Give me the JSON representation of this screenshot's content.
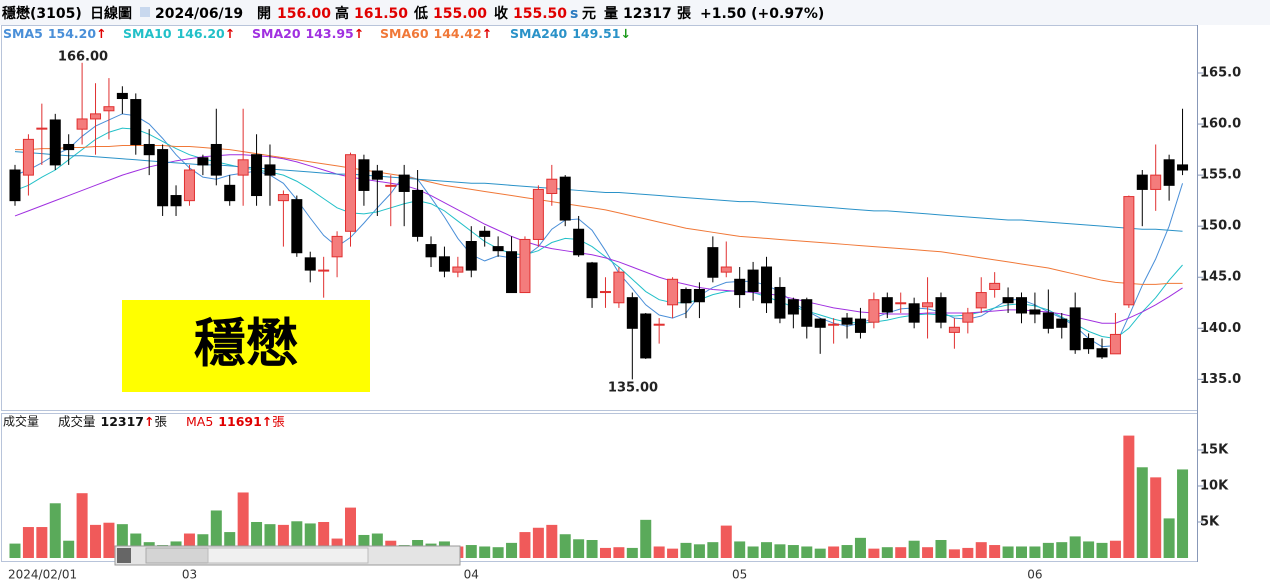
{
  "header": {
    "name": "穩懋(3105)",
    "period": "日線圖",
    "date": "2024/06/19",
    "open_label": "開",
    "open": "156.00",
    "high_label": "高",
    "high": "161.50",
    "low_label": "低",
    "low": "155.00",
    "close_label": "收",
    "close": "155.50",
    "currency_icon": "s",
    "currency": "元",
    "volume_label": "量",
    "volume": "12317",
    "volume_unit": "張",
    "change": "+1.50 (+0.97%)"
  },
  "label_box": "穩懋",
  "chart_data": [
    {
      "type": "candlestick",
      "categories": [
        "2024/02/01",
        null,
        null,
        null,
        null,
        null,
        null,
        null,
        null,
        null,
        null,
        null,
        null,
        "03",
        null,
        null,
        null,
        null,
        null,
        null,
        null,
        null,
        null,
        null,
        null,
        null,
        null,
        null,
        null,
        null,
        null,
        null,
        null,
        null,
        "04",
        null,
        null,
        null,
        null,
        null,
        null,
        null,
        null,
        null,
        null,
        null,
        null,
        null,
        null,
        null,
        null,
        null,
        null,
        null,
        "05",
        null,
        null,
        null,
        null,
        null,
        null,
        null,
        null,
        null,
        null,
        null,
        null,
        null,
        null,
        null,
        null,
        null,
        null,
        null,
        null,
        null,
        "06",
        null,
        null,
        null,
        null,
        null,
        null,
        null,
        null,
        null,
        null,
        null
      ],
      "open": [
        155.5,
        155,
        159.5,
        160.4,
        158,
        159.5,
        160.5,
        161.3,
        163,
        162.4,
        158,
        157.5,
        153,
        152.5,
        156.7,
        158,
        154,
        155,
        157,
        156,
        152.5,
        152.6,
        146.9,
        145.7,
        147,
        149.5,
        156.5,
        155.4,
        154,
        155,
        153.5,
        148.2,
        147,
        145.5,
        148.5,
        149.5,
        148,
        147.5,
        143.5,
        148.7,
        153.2,
        154.8,
        149.7,
        146.4,
        143.6,
        142.5,
        143,
        141.4,
        140.4,
        142.3,
        143.8,
        143.8,
        147.9,
        145.5,
        144.8,
        145.7,
        146,
        144,
        142.8,
        142.8,
        140.9,
        140.4,
        141,
        140.9,
        140.6,
        143,
        142.5,
        142.4,
        142.1,
        143,
        139.6,
        140.6,
        142,
        143.8,
        143,
        143,
        141.8,
        141.5,
        140.9,
        142,
        139,
        138,
        137.5,
        142.3,
        155,
        153.6,
        156.5,
        156
      ],
      "high": [
        156,
        159,
        162,
        161,
        159,
        166,
        164,
        164.5,
        163.7,
        163,
        159.5,
        158,
        154,
        156,
        157,
        161.5,
        155,
        161.5,
        159,
        158,
        153.5,
        153,
        147.5,
        147,
        149.5,
        157.2,
        157,
        156,
        155,
        156,
        155.5,
        149,
        148,
        147,
        150,
        150,
        149,
        149,
        149,
        154,
        156,
        155,
        151,
        146.5,
        145,
        146,
        143.5,
        141.5,
        141,
        145,
        144,
        144.5,
        149,
        148.5,
        146,
        146.5,
        147,
        145,
        143,
        143,
        141,
        141,
        141.5,
        142,
        143.5,
        143.5,
        143.5,
        143,
        145,
        143.5,
        141,
        142,
        145,
        145.5,
        144,
        143.5,
        143.5,
        143.8,
        141.5,
        143.5,
        139.5,
        139,
        141.5,
        153,
        155.5,
        158,
        157,
        161.5
      ],
      "low": [
        152,
        153,
        156,
        155.5,
        156,
        158,
        157,
        158.5,
        161,
        157,
        155,
        151,
        151,
        152,
        155,
        154,
        152,
        152,
        152,
        152,
        148,
        147,
        144.5,
        143,
        145,
        148,
        152,
        151,
        150,
        150,
        148.5,
        146,
        145,
        145,
        145,
        148,
        147,
        143.5,
        143.5,
        148,
        152,
        150,
        147,
        142,
        142,
        142,
        135,
        137,
        138.5,
        141,
        141,
        141,
        144.5,
        145,
        142,
        142.7,
        141.5,
        140.5,
        140,
        139,
        137.5,
        138.5,
        139,
        139,
        140,
        141,
        141.5,
        140,
        139,
        140,
        138,
        139.5,
        141.5,
        143,
        141.5,
        140.5,
        140.5,
        139.5,
        139,
        137.5,
        137.5,
        137,
        137.5,
        142,
        150,
        151.5,
        152.5,
        155
      ],
      "close": [
        152.5,
        158.5,
        159.6,
        156,
        157.5,
        160.5,
        161,
        161.7,
        162.5,
        158,
        157,
        152,
        152,
        155.5,
        156,
        155,
        152.5,
        156.5,
        153,
        155,
        153.1,
        147.4,
        145.7,
        145.7,
        149,
        157,
        153.5,
        154.6,
        154,
        153.4,
        149,
        147,
        145.6,
        146,
        145.7,
        149,
        147.6,
        143.5,
        148.7,
        153.6,
        154.6,
        150.6,
        147.2,
        143,
        143.6,
        145.5,
        140,
        137.1,
        140.4,
        144.8,
        142.5,
        142.6,
        145,
        146,
        143.3,
        143.6,
        142.5,
        141,
        141.4,
        140.2,
        140.1,
        140.4,
        140.4,
        139.6,
        142.8,
        141.6,
        142.5,
        140.6,
        142.5,
        140.6,
        140.1,
        141.5,
        143.5,
        144.4,
        142.5,
        141.5,
        141.4,
        140,
        140.1,
        137.9,
        138,
        137.2,
        139.4,
        152.9,
        153.6,
        155,
        154,
        155.5
      ],
      "up_color": "#f47c7c",
      "up_edge": "#e03030",
      "down_color": "#000000",
      "series": [
        {
          "name": "SMA5",
          "legend_value": "154.20",
          "arrow": "↑",
          "arrow_color": "#e00000",
          "color": "#4a8fd8",
          "values": [
            155.0,
            155.5,
            156.2,
            157.0,
            157.6,
            158.8,
            159.8,
            160.4,
            161.0,
            160.8,
            160.0,
            158.6,
            157.0,
            155.7,
            154.8,
            154.6,
            155.0,
            155.2,
            155.4,
            155.0,
            154.2,
            152.6,
            150.8,
            149.1,
            148.0,
            148.9,
            150.3,
            151.8,
            153.2,
            155.0,
            154.6,
            152.8,
            150.9,
            148.8,
            147.2,
            146.6,
            147.1,
            146.9,
            147.0,
            148.0,
            149.7,
            150.6,
            150.7,
            149.6,
            147.6,
            145.4,
            143.9,
            142.3,
            141.3,
            141.0,
            141.5,
            143.2,
            144.0,
            144.5,
            144.6,
            144.6,
            144.2,
            143.6,
            142.5,
            141.7,
            141.0,
            140.5,
            140.2,
            140.5,
            141.0,
            141.5,
            141.9,
            142.0,
            141.9,
            141.6,
            141.0,
            140.9,
            141.2,
            142.0,
            142.8,
            142.8,
            142.3,
            141.6,
            141.0,
            140.2,
            139.0,
            138.2,
            138.3,
            141.2,
            144.2,
            146.8,
            150.0,
            154.2
          ]
        },
        {
          "name": "SMA10",
          "legend_value": "146.20",
          "arrow": "↑",
          "arrow_color": "#e00000",
          "color": "#22c0c8",
          "values": [
            153.5,
            154.0,
            154.8,
            155.5,
            156.5,
            157.5,
            158.5,
            159.2,
            159.6,
            159.5,
            159.0,
            158.3,
            157.6,
            157.0,
            156.6,
            156.3,
            156.0,
            155.7,
            155.5,
            155.3,
            155.0,
            154.4,
            153.6,
            152.7,
            151.8,
            151.3,
            151.2,
            151.4,
            151.8,
            152.2,
            152.5,
            152.2,
            151.5,
            150.5,
            149.5,
            148.5,
            147.8,
            147.3,
            147.2,
            147.6,
            148.4,
            148.8,
            148.7,
            148.0,
            147.0,
            146.0,
            144.8,
            143.6,
            142.8,
            142.5,
            142.5,
            142.8,
            143.3,
            143.6,
            143.7,
            143.5,
            143.1,
            142.6,
            142.1,
            141.7,
            141.3,
            140.9,
            140.6,
            140.5,
            140.6,
            140.8,
            141.1,
            141.3,
            141.4,
            141.3,
            141.2,
            141.3,
            141.6,
            142.0,
            142.3,
            142.4,
            142.2,
            141.8,
            141.1,
            140.4,
            139.7,
            139.2,
            139.0,
            140.0,
            141.6,
            143.0,
            144.7,
            146.2
          ]
        },
        {
          "name": "SMA20",
          "legend_value": "143.95",
          "arrow": "↑",
          "arrow_color": "#e00000",
          "color": "#a030e0",
          "values": [
            151.0,
            151.5,
            152.0,
            152.5,
            153.0,
            153.5,
            154.0,
            154.5,
            155.0,
            155.4,
            155.8,
            156.1,
            156.4,
            156.6,
            156.8,
            156.9,
            157.0,
            157.0,
            156.9,
            156.8,
            156.6,
            156.3,
            155.9,
            155.5,
            155.1,
            154.8,
            154.6,
            154.4,
            154.2,
            154.0,
            153.6,
            153.0,
            152.3,
            151.6,
            150.9,
            150.2,
            149.6,
            149.0,
            148.5,
            148.1,
            147.8,
            147.6,
            147.4,
            147.2,
            146.9,
            146.5,
            146.0,
            145.5,
            145.0,
            144.6,
            144.3,
            144.0,
            143.8,
            143.7,
            143.6,
            143.5,
            143.4,
            143.2,
            142.9,
            142.6,
            142.3,
            142.0,
            141.8,
            141.6,
            141.5,
            141.4,
            141.4,
            141.4,
            141.5,
            141.5,
            141.5,
            141.5,
            141.6,
            141.7,
            141.8,
            141.8,
            141.7,
            141.6,
            141.4,
            141.1,
            140.8,
            140.5,
            140.5,
            141.0,
            141.6,
            142.3,
            143.1,
            143.95
          ]
        },
        {
          "name": "SMA60",
          "legend_value": "144.42",
          "arrow": "↑",
          "arrow_color": "#e00000",
          "color": "#f07838",
          "values": [
            157.5,
            157.5,
            157.6,
            157.6,
            157.7,
            157.7,
            157.8,
            157.8,
            157.9,
            157.9,
            157.9,
            157.9,
            157.8,
            157.8,
            157.7,
            157.6,
            157.5,
            157.3,
            157.1,
            156.9,
            156.7,
            156.5,
            156.3,
            156.1,
            155.9,
            155.7,
            155.5,
            155.3,
            155.1,
            154.9,
            154.6,
            154.3,
            154.0,
            153.8,
            153.6,
            153.4,
            153.2,
            153.0,
            152.8,
            152.6,
            152.4,
            152.2,
            152.0,
            151.8,
            151.6,
            151.3,
            151.0,
            150.7,
            150.4,
            150.1,
            149.8,
            149.6,
            149.4,
            149.2,
            149.0,
            148.9,
            148.8,
            148.7,
            148.6,
            148.5,
            148.4,
            148.3,
            148.2,
            148.1,
            148.0,
            147.9,
            147.8,
            147.7,
            147.6,
            147.5,
            147.3,
            147.1,
            146.9,
            146.7,
            146.5,
            146.3,
            146.1,
            145.9,
            145.6,
            145.3,
            145.0,
            144.7,
            144.5,
            144.4,
            144.3,
            144.3,
            144.4,
            144.4
          ]
        },
        {
          "name": "SMA240",
          "legend_value": "149.51",
          "arrow": "↓",
          "arrow_color": "#1a9a1a",
          "color": "#2a92c8",
          "values": [
            157.3,
            157.2,
            157.1,
            157.0,
            156.9,
            156.9,
            156.8,
            156.7,
            156.6,
            156.5,
            156.4,
            156.3,
            156.2,
            156.1,
            156.0,
            156.0,
            155.9,
            155.8,
            155.7,
            155.6,
            155.5,
            155.4,
            155.3,
            155.2,
            155.1,
            155.1,
            155.0,
            154.9,
            154.8,
            154.7,
            154.6,
            154.5,
            154.4,
            154.3,
            154.2,
            154.2,
            154.1,
            154.0,
            153.9,
            153.8,
            153.7,
            153.6,
            153.5,
            153.4,
            153.3,
            153.3,
            153.2,
            153.1,
            153.0,
            152.9,
            152.8,
            152.7,
            152.6,
            152.5,
            152.4,
            152.4,
            152.3,
            152.2,
            152.1,
            152.0,
            151.9,
            151.8,
            151.7,
            151.6,
            151.5,
            151.5,
            151.4,
            151.3,
            151.2,
            151.1,
            151.0,
            150.9,
            150.8,
            150.7,
            150.6,
            150.6,
            150.5,
            150.4,
            150.3,
            150.2,
            150.1,
            150.0,
            149.9,
            149.8,
            149.7,
            149.7,
            149.6,
            149.5
          ]
        }
      ],
      "annotations": [
        "166.00",
        "135.00"
      ],
      "ylim": [
        132.0,
        169.7
      ],
      "yticks": [
        {
          "value": 135,
          "label": "135.0"
        },
        {
          "value": 140,
          "label": "140.0"
        },
        {
          "value": 145,
          "label": "145.0"
        },
        {
          "value": 150,
          "label": "150.0"
        },
        {
          "value": 155,
          "label": "155.0"
        },
        {
          "value": 160,
          "label": "160.0"
        },
        {
          "value": 165,
          "label": "165.0"
        }
      ]
    },
    {
      "type": "bar",
      "title": "成交量",
      "legend": [
        {
          "name": "成交量",
          "value": "12317",
          "arrow": "↑",
          "unit": "張",
          "color": "#111111"
        },
        {
          "name": "MA5",
          "value": "11691",
          "arrow": "↑",
          "unit": "張",
          "color": "#e00000"
        }
      ],
      "values": [
        2,
        4.3,
        4.3,
        7.6,
        2.4,
        9,
        4.6,
        4.9,
        4.7,
        3.4,
        2.2,
        1.8,
        2.3,
        3.4,
        3.3,
        6.6,
        3.6,
        9.1,
        5,
        4.7,
        4.6,
        5.1,
        4.8,
        5,
        2.7,
        7,
        3.2,
        3.4,
        2.4,
        1.8,
        2.5,
        2,
        2.3,
        1.6,
        1.8,
        1.6,
        1.5,
        2.1,
        3.6,
        4.2,
        4.6,
        3.3,
        2.6,
        2.5,
        1.4,
        1.5,
        1.4,
        5.3,
        1.6,
        1.3,
        2.1,
        1.9,
        2.2,
        4.5,
        2.3,
        1.6,
        2.2,
        1.9,
        1.8,
        1.6,
        1.3,
        1.6,
        1.8,
        2.8,
        1.3,
        1.5,
        1.5,
        2.4,
        1.5,
        2.5,
        1.2,
        1.4,
        2.2,
        1.8,
        1.6,
        1.6,
        1.6,
        2.1,
        2.2,
        3,
        2.3,
        2.1,
        2.4,
        17,
        12.6,
        11.2,
        5.5,
        12.3
      ],
      "up_color": "#f05a5a",
      "down_color": "#5aaa5a",
      "ylim": [
        0,
        19.86
      ],
      "yticks": [
        {
          "value": 5,
          "label": "5K"
        },
        {
          "value": 10,
          "label": "10K"
        },
        {
          "value": 15,
          "label": "15K"
        }
      ]
    }
  ]
}
